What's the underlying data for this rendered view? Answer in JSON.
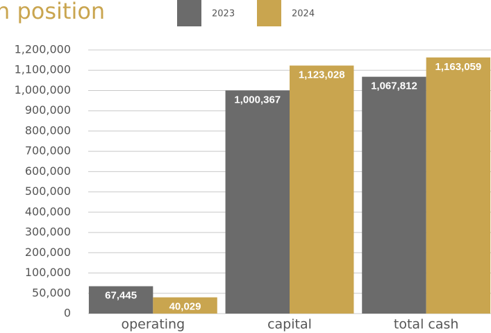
{
  "chart_data": {
    "type": "bar",
    "title": "n position",
    "categories": [
      "operating",
      "capital",
      "total cash"
    ],
    "series": [
      {
        "name": "2023",
        "color": "#6b6b6b",
        "values": [
          67445,
          1000367,
          1067812
        ],
        "value_labels": [
          "67,445",
          "1,000,367",
          "1,067,812"
        ]
      },
      {
        "name": "2024",
        "color": "#c9a54f",
        "values": [
          40029,
          1123028,
          1163059
        ],
        "value_labels": [
          "40,029",
          "1,123,028",
          "1,163,059"
        ]
      }
    ],
    "ylim": [
      0,
      1200000
    ],
    "yticks": [
      0,
      {
        "value": 50000,
        "label": "50,000"
      },
      {
        "value": 100000,
        "label": "100,000"
      },
      {
        "value": 200000,
        "label": "200,000"
      },
      {
        "value": 300000,
        "label": "300,000"
      },
      {
        "value": 400000,
        "label": "400,000"
      },
      {
        "value": 500000,
        "label": "500,000"
      },
      {
        "value": 600000,
        "label": "600,000"
      },
      {
        "value": 700000,
        "label": "700,000"
      },
      {
        "value": 800000,
        "label": "800,000"
      },
      {
        "value": 900000,
        "label": "900,000"
      },
      {
        "value": 1000000,
        "label": "1,000,000"
      },
      {
        "value": 1100000,
        "label": "1,100,000"
      },
      {
        "value": 1200000,
        "label": "1,200,000"
      }
    ],
    "grid": true
  }
}
